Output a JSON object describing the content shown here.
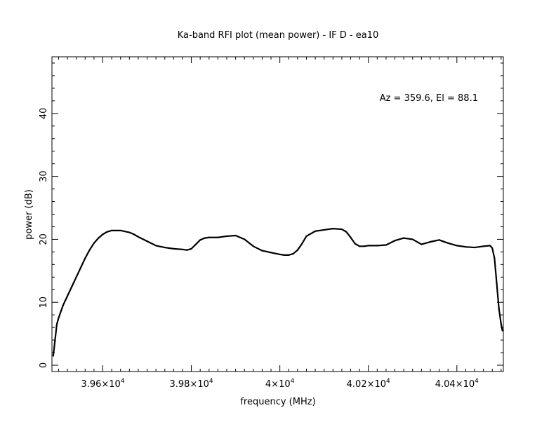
{
  "chart_data": {
    "type": "line",
    "title": "Ka-band RFI plot (mean power) - IF D - ea10",
    "xlabel": "frequency (MHz)",
    "ylabel": "power (dB)",
    "annotation": "Az = 359.6, El = 88.1",
    "xlim": [
      39485,
      40505
    ],
    "ylim": [
      -1,
      49
    ],
    "grid": false,
    "legend": "none",
    "x_ticks": [
      {
        "value": 39600,
        "mantissa": "3.96",
        "exponent": "4"
      },
      {
        "value": 39800,
        "mantissa": "3.98",
        "exponent": "4"
      },
      {
        "value": 40000,
        "mantissa": "4",
        "exponent": "4"
      },
      {
        "value": 40200,
        "mantissa": "4.02",
        "exponent": "4"
      },
      {
        "value": 40400,
        "mantissa": "4.04",
        "exponent": "4"
      }
    ],
    "y_ticks": [
      {
        "value": 0,
        "label": "0"
      },
      {
        "value": 10,
        "label": "10"
      },
      {
        "value": 20,
        "label": "20"
      },
      {
        "value": 30,
        "label": "30"
      },
      {
        "value": 40,
        "label": "40"
      }
    ],
    "series": [
      {
        "line_color": "#000000",
        "x": [
          39488,
          39492,
          39496,
          39500,
          39505,
          39510,
          39520,
          39530,
          39540,
          39550,
          39560,
          39570,
          39580,
          39590,
          39600,
          39610,
          39620,
          39640,
          39660,
          39670,
          39680,
          39700,
          39720,
          39740,
          39760,
          39780,
          39790,
          39800,
          39810,
          39820,
          39830,
          39840,
          39860,
          39880,
          39900,
          39920,
          39940,
          39960,
          39980,
          40000,
          40010,
          40020,
          40030,
          40040,
          40050,
          40060,
          40080,
          40100,
          40120,
          40140,
          40150,
          40160,
          40170,
          40180,
          40190,
          40200,
          40220,
          40240,
          40260,
          40280,
          40300,
          40320,
          40340,
          40360,
          40380,
          40400,
          40420,
          40440,
          40460,
          40475,
          40480,
          40485,
          40490,
          40495,
          40500,
          40503
        ],
        "y": [
          1.5,
          4.0,
          6.5,
          7.5,
          8.5,
          9.5,
          11.0,
          12.5,
          14.0,
          15.5,
          17.0,
          18.3,
          19.4,
          20.2,
          20.8,
          21.2,
          21.4,
          21.4,
          21.1,
          20.8,
          20.4,
          19.7,
          19.0,
          18.7,
          18.5,
          18.4,
          18.3,
          18.5,
          19.2,
          19.9,
          20.2,
          20.3,
          20.3,
          20.5,
          20.6,
          20.0,
          18.9,
          18.2,
          17.9,
          17.6,
          17.5,
          17.5,
          17.7,
          18.3,
          19.3,
          20.5,
          21.3,
          21.5,
          21.7,
          21.6,
          21.2,
          20.3,
          19.3,
          18.9,
          18.9,
          19.0,
          19.0,
          19.1,
          19.8,
          20.2,
          20.0,
          19.2,
          19.6,
          19.9,
          19.4,
          19.0,
          18.8,
          18.7,
          18.9,
          19.0,
          18.6,
          17.0,
          13.0,
          9.0,
          6.5,
          5.5
        ]
      }
    ]
  }
}
